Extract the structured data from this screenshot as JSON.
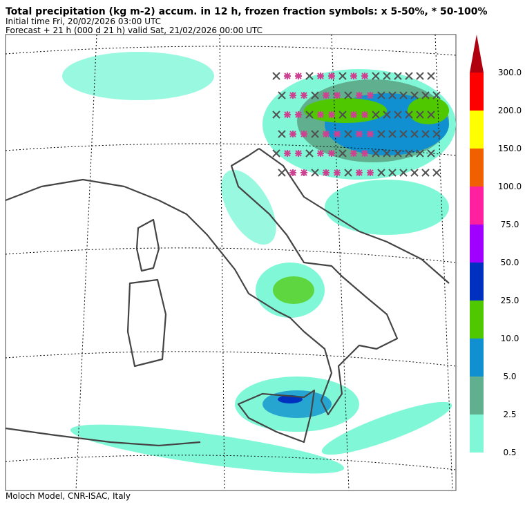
{
  "header": {
    "title": "Total precipitation (kg m-2) accum. in 12 h, frozen fraction symbols: x 5-50%, * 50-100%",
    "initial_time": "Initial time  Fri, 20/02/2026  03:00 UTC",
    "forecast": "Forecast  +  21 h  (000 d 21 h)  valid Sat, 21/02/2026 00:00 UTC"
  },
  "colorbar": {
    "colors": [
      "#80f8d8",
      "#60b090",
      "#1090d0",
      "#50c800",
      "#0030c0",
      "#a000ff",
      "#ff20a0",
      "#f06000",
      "#ffff00",
      "#ff0000",
      "#b00010"
    ],
    "ticks": [
      0.5,
      2.5,
      {
        "value": 5,
        "label": "5.0"
      },
      {
        "value": 10,
        "label": "10.0"
      },
      {
        "value": 25,
        "label": "25.0"
      },
      {
        "value": 50,
        "label": "50.0"
      },
      {
        "value": 75,
        "label": "75.0"
      },
      {
        "value": 100,
        "label": "100.0"
      },
      {
        "value": 150,
        "label": "150.0"
      },
      {
        "value": 200,
        "label": "200.0"
      },
      {
        "value": 300,
        "label": "300.0"
      }
    ]
  },
  "footer": "Moloch Model, CNR-ISAC, Italy"
}
